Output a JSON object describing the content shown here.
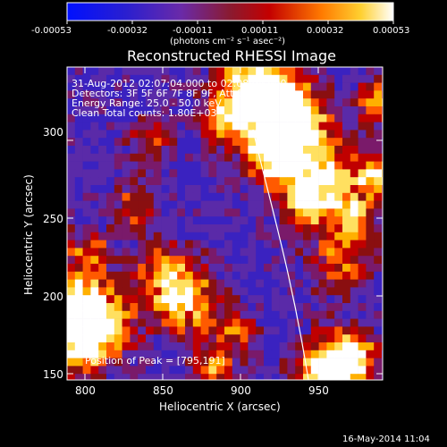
{
  "colorbar": {
    "tick_labels": [
      "-0.00053",
      "-0.00032",
      "-0.00011",
      "0.00011",
      "0.00032",
      "0.00053"
    ],
    "units_label": "(photons cm⁻² s⁻¹ asec⁻²)"
  },
  "title": "Reconstructed RHESSI Image",
  "annotation": {
    "time_range": "31-Aug-2012 02:07:04.000 to 02:08:04.000",
    "detectors": "Detectors: 3F 5F 6F 7F 8F 9F, Att 0",
    "energy": "Energy Range: 25.0 - 50.0 keV",
    "clean": "Clean     Total counts: 1.80E+03",
    "peak": "Position of Peak = [795,191]"
  },
  "axes": {
    "xlabel": "Heliocentric X (arcsec)",
    "ylabel": "Heliocentric Y (arcsec)",
    "x_ticks": [
      "800",
      "850",
      "900",
      "950"
    ],
    "y_ticks": [
      "150",
      "200",
      "250",
      "300"
    ]
  },
  "footer": {
    "timestamp": "16-May-2014 11:04"
  },
  "colors": {
    "background": "#000000",
    "limb_line": "#ffffff"
  }
}
